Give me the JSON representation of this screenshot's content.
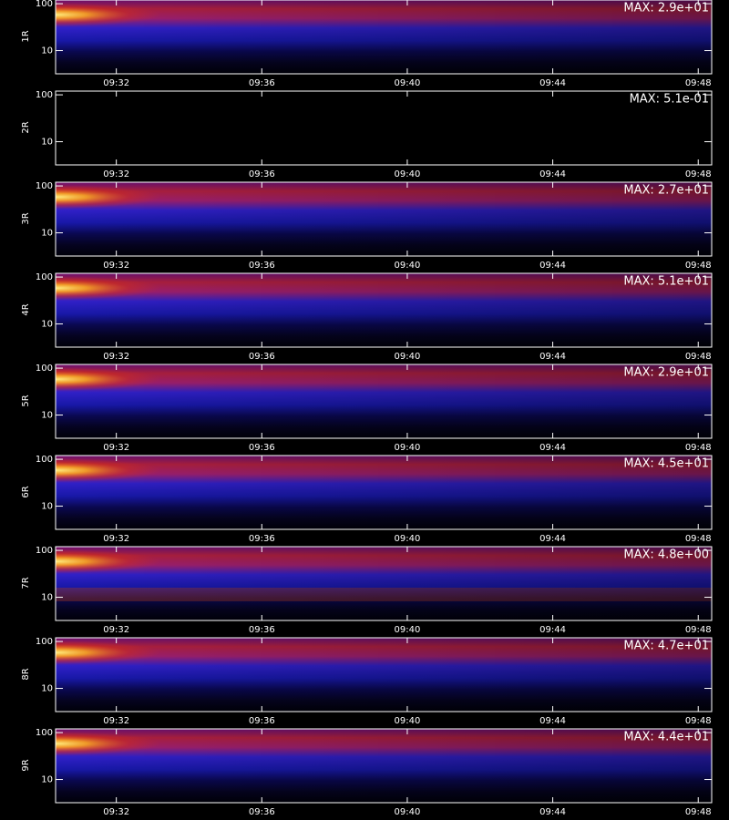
{
  "chart_data": [
    {
      "type": "heatmap",
      "ylabel": "1R",
      "annotation": "MAX: 2.9e+01",
      "log_y": true,
      "ylim": [
        3.2,
        120
      ],
      "yticks": [
        10,
        100
      ],
      "xlim": [
        30.33,
        48.37
      ],
      "xticks": [
        {
          "value": 32,
          "label": "09:32"
        },
        {
          "value": 36,
          "label": "09:36"
        },
        {
          "value": 40,
          "label": "09:40"
        },
        {
          "value": 44,
          "label": "09:44"
        },
        {
          "value": 48,
          "label": "09:48"
        }
      ]
    },
    {
      "type": "heatmap",
      "ylabel": "2R",
      "annotation": "MAX: 5.1e-01",
      "log_y": true,
      "ylim": [
        3.2,
        120
      ],
      "yticks": [
        10,
        100
      ],
      "xlim": [
        30.33,
        48.37
      ],
      "xticks": [
        {
          "value": 32,
          "label": "09:32"
        },
        {
          "value": 36,
          "label": "09:36"
        },
        {
          "value": 40,
          "label": "09:40"
        },
        {
          "value": 44,
          "label": "09:44"
        },
        {
          "value": 48,
          "label": "09:48"
        }
      ]
    },
    {
      "type": "heatmap",
      "ylabel": "3R",
      "annotation": "MAX: 2.7e+01",
      "log_y": true,
      "ylim": [
        3.2,
        120
      ],
      "yticks": [
        10,
        100
      ],
      "xlim": [
        30.33,
        48.37
      ],
      "xticks": [
        {
          "value": 32,
          "label": "09:32"
        },
        {
          "value": 36,
          "label": "09:36"
        },
        {
          "value": 40,
          "label": "09:40"
        },
        {
          "value": 44,
          "label": "09:44"
        },
        {
          "value": 48,
          "label": "09:48"
        }
      ]
    },
    {
      "type": "heatmap",
      "ylabel": "4R",
      "annotation": "MAX: 5.1e+01",
      "log_y": true,
      "ylim": [
        3.2,
        120
      ],
      "yticks": [
        10,
        100
      ],
      "xlim": [
        30.33,
        48.37
      ],
      "xticks": [
        {
          "value": 32,
          "label": "09:32"
        },
        {
          "value": 36,
          "label": "09:36"
        },
        {
          "value": 40,
          "label": "09:40"
        },
        {
          "value": 44,
          "label": "09:44"
        },
        {
          "value": 48,
          "label": "09:48"
        }
      ]
    },
    {
      "type": "heatmap",
      "ylabel": "5R",
      "annotation": "MAX: 2.9e+01",
      "log_y": true,
      "ylim": [
        3.2,
        120
      ],
      "yticks": [
        10,
        100
      ],
      "xlim": [
        30.33,
        48.37
      ],
      "xticks": [
        {
          "value": 32,
          "label": "09:32"
        },
        {
          "value": 36,
          "label": "09:36"
        },
        {
          "value": 40,
          "label": "09:40"
        },
        {
          "value": 44,
          "label": "09:44"
        },
        {
          "value": 48,
          "label": "09:48"
        }
      ]
    },
    {
      "type": "heatmap",
      "ylabel": "6R",
      "annotation": "MAX: 4.5e+01",
      "log_y": true,
      "ylim": [
        3.2,
        120
      ],
      "yticks": [
        10,
        100
      ],
      "xlim": [
        30.33,
        48.37
      ],
      "xticks": [
        {
          "value": 32,
          "label": "09:32"
        },
        {
          "value": 36,
          "label": "09:36"
        },
        {
          "value": 40,
          "label": "09:40"
        },
        {
          "value": 44,
          "label": "09:44"
        },
        {
          "value": 48,
          "label": "09:48"
        }
      ]
    },
    {
      "type": "heatmap",
      "ylabel": "7R",
      "annotation": "MAX: 4.8e+00",
      "log_y": true,
      "ylim": [
        3.2,
        120
      ],
      "yticks": [
        10,
        100
      ],
      "xlim": [
        30.33,
        48.37
      ],
      "xticks": [
        {
          "value": 32,
          "label": "09:32"
        },
        {
          "value": 36,
          "label": "09:36"
        },
        {
          "value": 40,
          "label": "09:40"
        },
        {
          "value": 44,
          "label": "09:44"
        },
        {
          "value": 48,
          "label": "09:48"
        }
      ]
    },
    {
      "type": "heatmap",
      "ylabel": "8R",
      "annotation": "MAX: 4.7e+01",
      "log_y": true,
      "ylim": [
        3.2,
        120
      ],
      "yticks": [
        10,
        100
      ],
      "xlim": [
        30.33,
        48.37
      ],
      "xticks": [
        {
          "value": 32,
          "label": "09:32"
        },
        {
          "value": 36,
          "label": "09:36"
        },
        {
          "value": 40,
          "label": "09:40"
        },
        {
          "value": 44,
          "label": "09:44"
        },
        {
          "value": 48,
          "label": "09:48"
        }
      ]
    },
    {
      "type": "heatmap",
      "ylabel": "9R",
      "annotation": "MAX: 4.4e+01",
      "log_y": true,
      "ylim": [
        3.2,
        120
      ],
      "yticks": [
        10,
        100
      ],
      "xlim": [
        30.33,
        48.37
      ],
      "xticks": [
        {
          "value": 32,
          "label": "09:32"
        },
        {
          "value": 36,
          "label": "09:36"
        },
        {
          "value": 40,
          "label": "09:40"
        },
        {
          "value": 44,
          "label": "09:44"
        },
        {
          "value": 48,
          "label": "09:48"
        }
      ]
    }
  ]
}
